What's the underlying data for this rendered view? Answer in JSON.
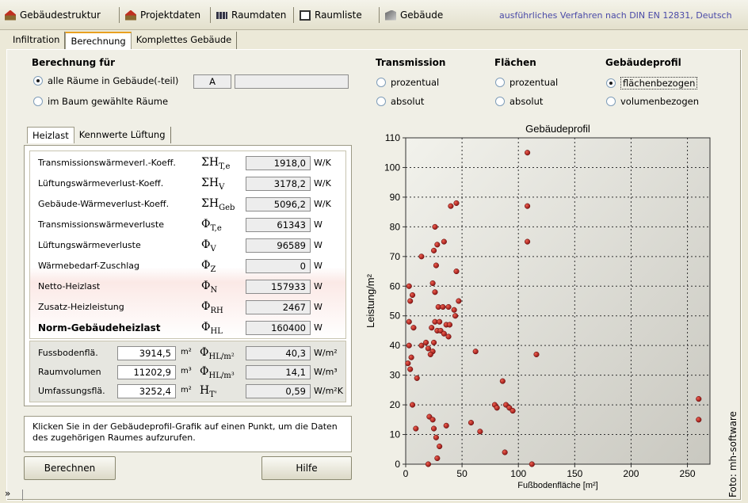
{
  "top_tabs": [
    {
      "label": "Gebäudestruktur"
    },
    {
      "label": "Projektdaten"
    },
    {
      "label": "Raumdaten"
    },
    {
      "label": "Raumliste"
    },
    {
      "label": "Gebäude"
    }
  ],
  "method_label": "ausführliches Verfahren nach DIN EN 12831, Deutsch",
  "sub_tabs": [
    "Infiltration",
    "Berechnung",
    "Komplettes Gebäude"
  ],
  "berechnung": {
    "title": "Berechnung für",
    "option_all": "alle Räume in Gebäude(-teil)",
    "option_tree": "im Baum gewählte Räume",
    "field_a": "A",
    "field_b": ""
  },
  "groups": {
    "transmission": {
      "title": "Transmission",
      "opt1": "prozentual",
      "opt2": "absolut"
    },
    "flaechen": {
      "title": "Flächen",
      "opt1": "prozentual",
      "opt2": "absolut"
    },
    "profil": {
      "title": "Gebäudeprofil",
      "opt1": "flächenbezogen",
      "opt2": "volumenbezogen"
    }
  },
  "inner_tabs": [
    "Heizlast",
    "Kennwerte Lüftung"
  ],
  "rows": [
    {
      "label": "Transmissionswärmeverl.-Koeff.",
      "sym": "ΣH",
      "sub": "T,e",
      "value": "1918,0",
      "unit": "W/K"
    },
    {
      "label": "Lüftungswärmeverlust-Koeff.",
      "sym": "ΣH",
      "sub": "V",
      "value": "3178,2",
      "unit": "W/K"
    },
    {
      "label": "Gebäude-Wärmeverlust-Koeff.",
      "sym": "ΣH",
      "sub": "Geb",
      "value": "5096,2",
      "unit": "W/K"
    },
    {
      "label": "Transmissionswärmeverluste",
      "sym": "Φ",
      "sub": "T,e",
      "value": "61343",
      "unit": "W"
    },
    {
      "label": "Lüftungswärmeverluste",
      "sym": "Φ",
      "sub": "V",
      "value": "96589",
      "unit": "W"
    },
    {
      "label": "Wärmebedarf-Zuschlag",
      "sym": "Φ",
      "sub": "Z",
      "value": "0",
      "unit": "W"
    },
    {
      "label": "Netto-Heizlast",
      "sym": "Φ",
      "sub": "N",
      "value": "157933",
      "unit": "W"
    },
    {
      "label": "Zusatz-Heizleistung",
      "sym": "Φ",
      "sub": "RH",
      "value": "2467",
      "unit": "W"
    },
    {
      "label": "Norm-Gebäudeheizlast",
      "sym": "Φ",
      "sub": "HL",
      "value": "160400",
      "unit": "W"
    }
  ],
  "bottom_rows": [
    {
      "label": "Fussbodenflä.",
      "value": "3914,5",
      "unit": "m²",
      "sym": "Φ",
      "sub": "HL/m²",
      "kv": "40,3",
      "kunit": "W/m²"
    },
    {
      "label": "Raumvolumen",
      "value": "11202,9",
      "unit": "m³",
      "sym": "Φ",
      "sub": "HL/m³",
      "kv": "14,1",
      "kunit": "W/m³"
    },
    {
      "label": "Umfassungsflä.",
      "value": "3252,4",
      "unit": "m²",
      "sym": "H",
      "sub": "T'",
      "kv": "0,59",
      "kunit": "W/m²K"
    }
  ],
  "hint": "Klicken Sie in der Gebäudeprofil-Grafik auf einen Punkt, um die Daten des zugehörigen Raumes aufzurufen.",
  "buttons": {
    "calc": "Berechnen",
    "help": "Hilfe"
  },
  "credit": "Foto: mh-software",
  "colors": {
    "accent": "#e8a020",
    "point": "#b0201e",
    "plot_bg": "#d8d8d0"
  },
  "chart_data": {
    "type": "scatter",
    "title": "Gebäudeprofil",
    "xlabel": "Fußbodenfläche [m²]",
    "ylabel": "Leistung/m²",
    "xlim": [
      0,
      270
    ],
    "ylim": [
      0,
      110
    ],
    "xticks": [
      0,
      50,
      100,
      150,
      200,
      250
    ],
    "yticks": [
      0,
      10,
      20,
      30,
      40,
      50,
      60,
      70,
      80,
      90,
      100,
      110
    ],
    "grid": true,
    "points": [
      [
        108,
        105
      ],
      [
        108,
        87
      ],
      [
        108,
        75
      ],
      [
        116,
        37
      ],
      [
        62,
        38
      ],
      [
        26,
        80
      ],
      [
        28,
        74
      ],
      [
        34,
        75
      ],
      [
        25,
        72
      ],
      [
        27,
        67
      ],
      [
        24,
        61
      ],
      [
        26,
        58
      ],
      [
        29,
        53
      ],
      [
        33,
        53
      ],
      [
        38,
        53
      ],
      [
        43,
        52
      ],
      [
        47,
        55
      ],
      [
        45,
        65
      ],
      [
        40,
        87
      ],
      [
        45,
        88
      ],
      [
        14,
        70
      ],
      [
        3,
        60
      ],
      [
        6,
        57
      ],
      [
        4,
        55
      ],
      [
        3,
        48
      ],
      [
        7,
        46
      ],
      [
        3,
        40
      ],
      [
        5,
        36
      ],
      [
        2,
        34
      ],
      [
        4,
        32
      ],
      [
        10,
        29
      ],
      [
        14,
        40
      ],
      [
        18,
        41
      ],
      [
        20,
        39
      ],
      [
        25,
        41
      ],
      [
        24,
        38
      ],
      [
        22,
        37
      ],
      [
        28,
        45
      ],
      [
        31,
        45
      ],
      [
        34,
        44
      ],
      [
        38,
        43
      ],
      [
        26,
        48
      ],
      [
        30,
        48
      ],
      [
        36,
        47
      ],
      [
        44,
        50
      ],
      [
        39,
        47
      ],
      [
        23,
        46
      ],
      [
        21,
        16
      ],
      [
        24,
        15
      ],
      [
        25,
        12
      ],
      [
        27,
        9
      ],
      [
        30,
        6
      ],
      [
        28,
        2
      ],
      [
        20,
        0
      ],
      [
        36,
        13
      ],
      [
        9,
        12
      ],
      [
        6,
        20
      ],
      [
        79,
        20
      ],
      [
        81,
        19
      ],
      [
        89,
        20
      ],
      [
        92,
        19
      ],
      [
        95,
        18
      ],
      [
        86,
        28
      ],
      [
        58,
        14
      ],
      [
        66,
        11
      ],
      [
        88,
        4
      ],
      [
        260,
        22
      ],
      [
        260,
        15
      ],
      [
        112,
        0
      ]
    ]
  }
}
